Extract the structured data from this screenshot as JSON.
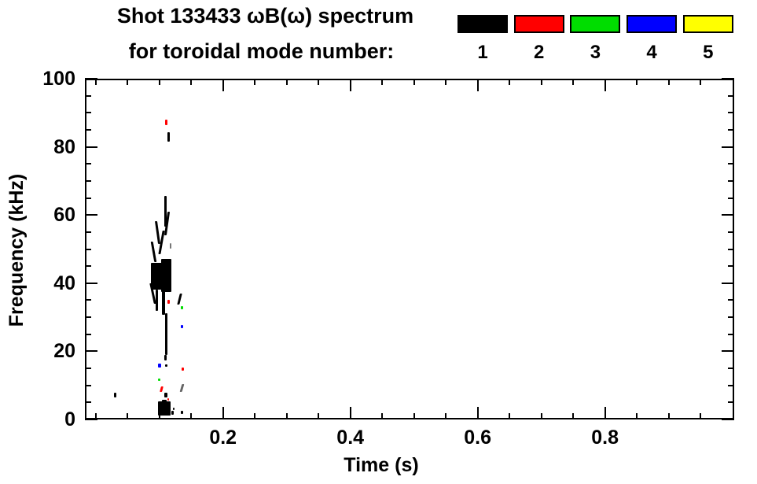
{
  "title": {
    "line1": "Shot 133433 ωB(ω) spectrum",
    "line2": "for toroidal mode number:"
  },
  "legend": {
    "modes": [
      {
        "label": "1",
        "color": "#000000"
      },
      {
        "label": "2",
        "color": "#ff0000"
      },
      {
        "label": "3",
        "color": "#00dd00"
      },
      {
        "label": "4",
        "color": "#0000ff"
      },
      {
        "label": "5",
        "color": "#ffff00"
      }
    ]
  },
  "chart_data": {
    "type": "scatter",
    "title": "Shot 133433 ωB(ω) spectrum for toroidal mode number: 1-5",
    "xlabel": "Time (s)",
    "ylabel": "Frequency (kHz)",
    "xlim": [
      -0.017,
      1.003
    ],
    "ylim": [
      0,
      100
    ],
    "grid": false,
    "legend_position": "top-right",
    "x_major_ticks": [
      0.2,
      0.4,
      0.6,
      0.8
    ],
    "x_major_tick_labels": [
      "0.2",
      "0.4",
      "0.6",
      "0.8"
    ],
    "x_minor_ticks": [
      0.0,
      0.05,
      0.1,
      0.15,
      0.25,
      0.3,
      0.35,
      0.45,
      0.5,
      0.55,
      0.65,
      0.7,
      0.75,
      0.85,
      0.9,
      0.95
    ],
    "y_major_ticks": [
      0,
      20,
      40,
      60,
      80,
      100
    ],
    "y_major_tick_labels": [
      "0",
      "20",
      "40",
      "60",
      "80",
      "100"
    ],
    "y_minor_ticks": [
      5,
      10,
      15,
      25,
      30,
      35,
      45,
      50,
      55,
      65,
      70,
      75,
      85,
      90,
      95
    ],
    "series": [
      {
        "name": "n=1",
        "color": "#000000",
        "points": [
          {
            "t": 0.114,
            "f1": 81.5,
            "f2": 84.3,
            "w": 3
          },
          {
            "t": 0.11,
            "f1": 56.5,
            "f2": 65.7,
            "w": 3
          },
          {
            "t": 0.112,
            "f1": 54.0,
            "f2": 61.0,
            "w": 3,
            "skew": -8
          },
          {
            "t": 0.0975,
            "f1": 51.6,
            "f2": 58.2,
            "w": 3,
            "skew": 8
          },
          {
            "t": 0.104,
            "f1": 48.4,
            "f2": 55.4,
            "w": 3,
            "skew": -10
          },
          {
            "t": 0.091,
            "f1": 46.0,
            "f2": 52.1,
            "w": 3,
            "skew": 10
          },
          {
            "t": 0.117,
            "f1": 50.2,
            "f2": 51.8,
            "w": 2,
            "color": "#777777"
          },
          {
            "t": 0.095,
            "f1": 38.0,
            "f2": 46.0,
            "w": 14
          },
          {
            "t": 0.111,
            "f1": 37.5,
            "f2": 47.0,
            "w": 13
          },
          {
            "t": 0.103,
            "f1": 39.5,
            "f2": 44.0,
            "w": 9
          },
          {
            "t": 0.09,
            "f1": 34.0,
            "f2": 40.0,
            "w": 3,
            "skew": 12
          },
          {
            "t": 0.096,
            "f1": 31.8,
            "f2": 38.1,
            "w": 3
          },
          {
            "t": 0.106,
            "f1": 30.6,
            "f2": 38.1,
            "w": 4
          },
          {
            "t": 0.132,
            "f1": 33.6,
            "f2": 36.9,
            "w": 3,
            "skew": -14
          },
          {
            "t": 0.111,
            "f1": 18.9,
            "f2": 31.1,
            "w": 3
          },
          {
            "t": 0.11,
            "f1": 17.3,
            "f2": 18.9,
            "w": 3
          },
          {
            "t": 0.111,
            "f1": 15.4,
            "f2": 16.2,
            "w": 3
          },
          {
            "t": 0.135,
            "f1": 8.0,
            "f2": 10.3,
            "w": 3,
            "skew": -16,
            "color": "#666666"
          },
          {
            "t": 0.11,
            "f1": 6.5,
            "f2": 7.9,
            "w": 4
          },
          {
            "t": 0.03,
            "f1": 6.5,
            "f2": 7.9,
            "w": 3
          },
          {
            "t": 0.108,
            "f1": 4.9,
            "f2": 5.8,
            "w": 6
          },
          {
            "t": 0.1075,
            "f1": 1.2,
            "f2": 5.4,
            "w": 16
          },
          {
            "t": 0.121,
            "f1": 1.4,
            "f2": 2.6,
            "w": 3
          },
          {
            "t": 0.123,
            "f1": 2.8,
            "f2": 3.5,
            "w": 2
          },
          {
            "t": 0.136,
            "f1": 1.6,
            "f2": 2.6,
            "w": 3
          }
        ]
      },
      {
        "name": "n=2",
        "color": "#ff0000",
        "points": [
          {
            "t": 0.111,
            "f1": 86.3,
            "f2": 87.9,
            "w": 3
          },
          {
            "t": 0.115,
            "f1": 33.9,
            "f2": 35.1,
            "w": 3
          },
          {
            "t": 0.137,
            "f1": 14.3,
            "f2": 15.2,
            "w": 3
          },
          {
            "t": 0.103,
            "f1": 8.0,
            "f2": 9.6,
            "w": 3,
            "skew": -14
          },
          {
            "t": 0.114,
            "f1": 5.6,
            "f2": 6.3,
            "w": 2
          }
        ]
      },
      {
        "name": "n=3",
        "color": "#00dd00",
        "points": [
          {
            "t": 0.136,
            "f1": 32.3,
            "f2": 33.2,
            "w": 3
          },
          {
            "t": 0.1,
            "f1": 11.2,
            "f2": 12.1,
            "w": 3
          }
        ]
      },
      {
        "name": "n=4",
        "color": "#0000ff",
        "points": [
          {
            "t": 0.1,
            "f1": 15.2,
            "f2": 16.4,
            "w": 4
          },
          {
            "t": 0.136,
            "f1": 26.9,
            "f2": 27.8,
            "w": 3
          }
        ]
      },
      {
        "name": "n=5",
        "color": "#ffff00",
        "points": []
      }
    ]
  }
}
